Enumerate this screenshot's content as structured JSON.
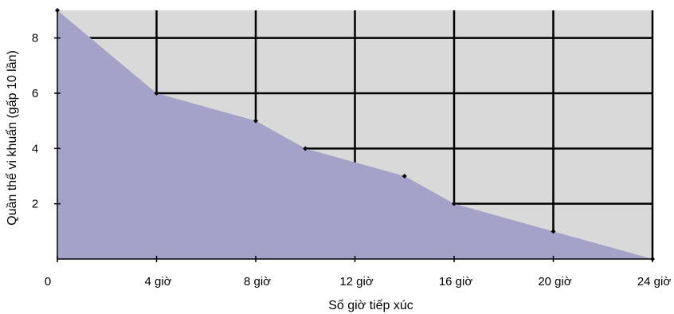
{
  "chart_data": {
    "type": "area",
    "xlabel": "Số giờ tiếp xúc",
    "ylabel": "Quần thể vi khuẩn (gấp 10 lần)",
    "xlim": [
      0,
      24
    ],
    "ylim": [
      0,
      9
    ],
    "x_ticks": [
      {
        "value": 0,
        "label": "0"
      },
      {
        "value": 4,
        "label": "4 giờ"
      },
      {
        "value": 8,
        "label": "8 giờ"
      },
      {
        "value": 12,
        "label": "12 giờ"
      },
      {
        "value": 16,
        "label": "16 giờ"
      },
      {
        "value": 20,
        "label": "20 giờ"
      },
      {
        "value": 24,
        "label": "24 giờ"
      }
    ],
    "y_ticks": [
      {
        "value": 2,
        "label": "2"
      },
      {
        "value": 4,
        "label": "4"
      },
      {
        "value": 6,
        "label": "6"
      },
      {
        "value": 8,
        "label": "8"
      }
    ],
    "series": [
      {
        "x": [
          0,
          4,
          8,
          10,
          14,
          16,
          20,
          24
        ],
        "y": [
          9,
          6,
          5,
          4,
          3,
          2,
          1,
          0
        ]
      }
    ],
    "grid": true,
    "colors": {
      "plot_background": "#d9d9d9",
      "area_fill": "#a4a2c8",
      "grid": "#000000"
    }
  }
}
